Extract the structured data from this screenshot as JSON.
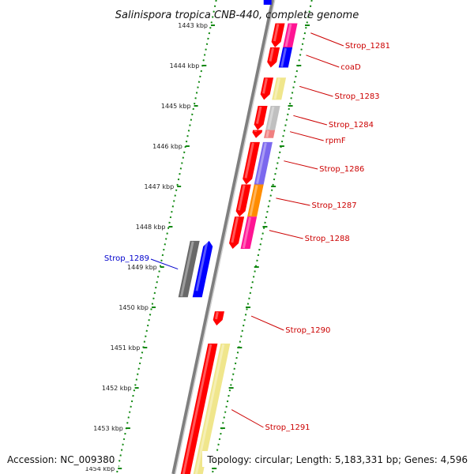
{
  "title": "Salinispora tropica CNB-440, complete genome",
  "accession": "Accession: NC_009380",
  "summary": "Topology: circular; Length: 5,183,331 bp; Genes: 4,596",
  "colors": {
    "red": "#ff0000",
    "blue": "#0000ff",
    "magenta": "#ff1493",
    "khaki": "#f0e68c",
    "lightgray": "#c0c0c0",
    "salmon": "#f08080",
    "slateblue": "#7b68ee",
    "orange": "#ff8c00",
    "darkgray": "#696969",
    "dotted_green": "#118811",
    "label_red": "#cc0000",
    "label_blue": "#0000cc"
  },
  "ticks": [
    {
      "kb": 1443,
      "label": "1443 kbp"
    },
    {
      "kb": 1444,
      "label": "1444 kbp"
    },
    {
      "kb": 1445,
      "label": "1445 kbp"
    },
    {
      "kb": 1446,
      "label": "1446 kbp"
    },
    {
      "kb": 1447,
      "label": "1447 kbp"
    },
    {
      "kb": 1448,
      "label": "1448 kbp"
    },
    {
      "kb": 1449,
      "label": "1449 kbp"
    },
    {
      "kb": 1450,
      "label": "1450 kbp"
    },
    {
      "kb": 1451,
      "label": "1451 kbp"
    },
    {
      "kb": 1452,
      "label": "1452 kbp"
    },
    {
      "kb": 1453,
      "label": "1453 kbp"
    },
    {
      "kb": 1454,
      "label": "1454 kbp"
    }
  ],
  "genes": [
    {
      "name": "Strop_1281",
      "strand": "+",
      "start_kb": 1442.95,
      "end_kb": 1443.55,
      "cog_color": "magenta"
    },
    {
      "name": "coaD",
      "strand": "+",
      "start_kb": 1443.55,
      "end_kb": 1444.05,
      "cog_color": "blue"
    },
    {
      "name": "Strop_1283",
      "strand": "+",
      "start_kb": 1444.3,
      "end_kb": 1444.85,
      "cog_color": "khaki"
    },
    {
      "name": "Strop_1284",
      "strand": "+",
      "start_kb": 1445.0,
      "end_kb": 1445.6,
      "cog_color": "lightgray"
    },
    {
      "name": "rpmF",
      "strand": "+",
      "start_kb": 1445.6,
      "end_kb": 1445.8,
      "cog_color": "salmon"
    },
    {
      "name": "Strop_1286",
      "strand": "+",
      "start_kb": 1445.9,
      "end_kb": 1446.95,
      "cog_color": "slateblue"
    },
    {
      "name": "Strop_1287",
      "strand": "+",
      "start_kb": 1446.95,
      "end_kb": 1447.75,
      "cog_color": "orange"
    },
    {
      "name": "Strop_1288",
      "strand": "+",
      "start_kb": 1447.75,
      "end_kb": 1448.55,
      "cog_color": "magenta"
    },
    {
      "name": "Strop_1289",
      "strand": "-",
      "start_kb": 1448.35,
      "end_kb": 1449.75,
      "cog_color": "darkgray"
    },
    {
      "name": "Strop_1290",
      "strand": "+",
      "start_kb": 1450.1,
      "end_kb": 1450.45,
      "cog_color": "none"
    },
    {
      "name": "Strop_1291",
      "strand": "+",
      "start_kb": 1450.9,
      "end_kb": 1454.3,
      "cog_color": "khaki"
    }
  ]
}
